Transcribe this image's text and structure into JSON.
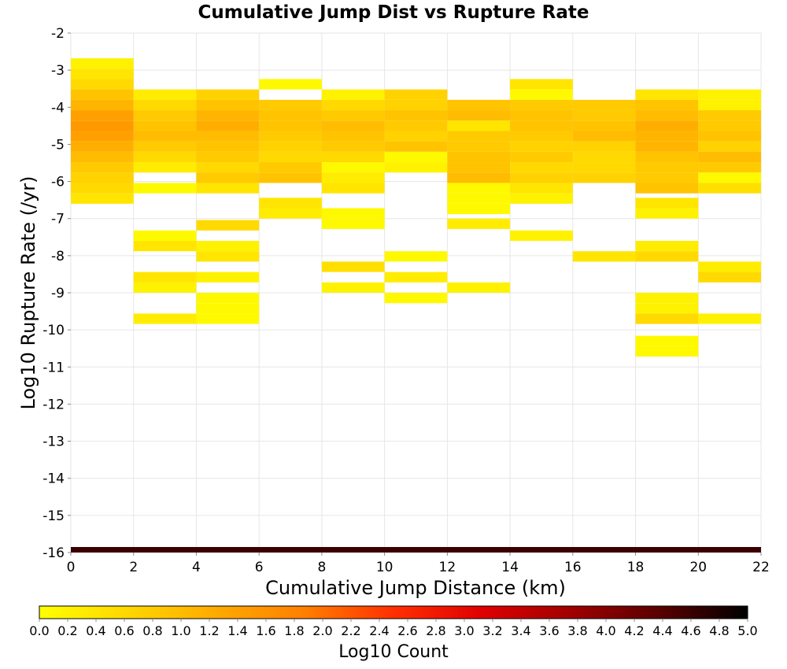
{
  "chart_data": {
    "type": "heatmap",
    "title": "Cumulative Jump Dist vs Rupture Rate",
    "xlabel": "Cumulative Jump Distance (km)",
    "ylabel": "Log10 Rupture Rate (/yr)",
    "xlim": [
      0,
      22
    ],
    "ylim": [
      -16,
      -2
    ],
    "x_ticks": [
      "0",
      "2",
      "4",
      "6",
      "8",
      "10",
      "12",
      "14",
      "16",
      "18",
      "20",
      "22"
    ],
    "y_ticks": [
      "-2",
      "-3",
      "-4",
      "-5",
      "-6",
      "-7",
      "-8",
      "-9",
      "-10",
      "-11",
      "-12",
      "-13",
      "-14",
      "-15",
      "-16"
    ],
    "x_bin_width": 2,
    "y_bin_height": 0.28,
    "colorbar": {
      "label": "Log10 Count",
      "range": [
        0,
        5
      ],
      "ticks": [
        "0.0",
        "0.2",
        "0.4",
        "0.6",
        "0.8",
        "1.0",
        "1.2",
        "1.4",
        "1.6",
        "1.8",
        "2.0",
        "2.2",
        "2.4",
        "2.6",
        "2.8",
        "3.0",
        "3.2",
        "3.4",
        "3.6",
        "3.8",
        "4.0",
        "4.2",
        "4.4",
        "4.6",
        "4.8",
        "5.0"
      ],
      "colors": [
        "#ffff00",
        "#ffd700",
        "#ffaa00",
        "#ff7f00",
        "#ff3000",
        "#e00000",
        "#a00000",
        "#5a0000",
        "#000000"
      ]
    },
    "cells": [
      {
        "x": 0,
        "y_values": [
          -2.82,
          -3.1,
          -3.38,
          -3.66,
          -3.94,
          -4.22,
          -4.5,
          -4.78,
          -5.06,
          -5.34,
          -5.62,
          -5.9,
          -6.18,
          -6.46
        ],
        "counts": [
          0.2,
          0.4,
          0.6,
          0.9,
          1.1,
          1.4,
          1.5,
          1.4,
          1.2,
          1.0,
          0.8,
          0.7,
          0.6,
          0.4
        ]
      },
      {
        "x": 2,
        "y_values": [
          -3.66,
          -3.94,
          -4.22,
          -4.5,
          -4.78,
          -5.06,
          -5.34,
          -5.62,
          -6.18,
          -7.46,
          -7.74,
          -8.58,
          -8.86,
          -9.7
        ],
        "counts": [
          0.3,
          0.6,
          0.8,
          0.9,
          1.0,
          0.8,
          0.6,
          0.3,
          0.1,
          0.1,
          0.4,
          0.4,
          0.2,
          0.3
        ]
      },
      {
        "x": 4,
        "y_values": [
          -3.66,
          -3.94,
          -4.22,
          -4.5,
          -4.78,
          -5.06,
          -5.34,
          -5.62,
          -5.9,
          -6.18,
          -7.18,
          -7.74,
          -8.02,
          -8.58,
          -9.14,
          -9.42,
          -9.7
        ],
        "counts": [
          0.7,
          0.9,
          1.1,
          1.2,
          1.0,
          0.9,
          0.8,
          0.6,
          0.8,
          0.4,
          0.6,
          0.2,
          0.4,
          0.2,
          0.1,
          0.1,
          0.1
        ]
      },
      {
        "x": 6,
        "y_values": [
          -3.38,
          -3.94,
          -4.22,
          -4.5,
          -4.78,
          -5.06,
          -5.34,
          -5.62,
          -5.9,
          -6.58,
          -6.86
        ],
        "counts": [
          0.1,
          0.8,
          0.9,
          0.9,
          0.8,
          0.7,
          0.6,
          0.8,
          0.9,
          0.4,
          0.3
        ]
      },
      {
        "x": 8,
        "y_values": [
          -3.66,
          -3.94,
          -4.22,
          -4.5,
          -4.78,
          -5.06,
          -5.34,
          -5.62,
          -5.9,
          -6.18,
          -6.86,
          -7.14,
          -8.3,
          -8.86
        ],
        "counts": [
          0.2,
          0.6,
          0.8,
          1.0,
          0.9,
          0.8,
          0.6,
          0.1,
          0.3,
          0.4,
          0.1,
          0.1,
          0.5,
          0.2
        ]
      },
      {
        "x": 10,
        "y_values": [
          -3.66,
          -3.94,
          -4.22,
          -4.5,
          -4.78,
          -5.06,
          -5.34,
          -5.62,
          -8.02,
          -8.58,
          -9.14
        ],
        "counts": [
          0.7,
          0.7,
          0.9,
          0.8,
          0.7,
          0.9,
          0.1,
          0.2,
          0.1,
          0.3,
          0.1
        ]
      },
      {
        "x": 12,
        "y_values": [
          -3.94,
          -4.22,
          -4.5,
          -4.78,
          -5.06,
          -5.34,
          -5.62,
          -5.9,
          -6.18,
          -6.46,
          -6.74,
          -7.14,
          -8.86
        ],
        "counts": [
          0.9,
          1.0,
          0.4,
          0.8,
          0.8,
          0.9,
          0.9,
          1.0,
          0.1,
          0.1,
          0.1,
          0.3,
          0.2
        ]
      },
      {
        "x": 14,
        "y_values": [
          -3.38,
          -3.66,
          -3.94,
          -4.22,
          -4.5,
          -4.78,
          -5.06,
          -5.34,
          -5.62,
          -5.9,
          -6.18,
          -6.46,
          -7.46
        ],
        "counts": [
          0.4,
          0.1,
          0.8,
          0.9,
          0.9,
          0.8,
          0.7,
          0.8,
          0.6,
          0.7,
          0.4,
          0.2,
          0.2
        ]
      },
      {
        "x": 16,
        "y_values": [
          -3.94,
          -4.22,
          -4.5,
          -4.78,
          -5.06,
          -5.34,
          -5.62,
          -5.9,
          -8.02
        ],
        "counts": [
          0.8,
          0.8,
          0.9,
          1.0,
          0.7,
          0.6,
          0.6,
          0.7,
          0.4
        ]
      },
      {
        "x": 18,
        "y_values": [
          -3.66,
          -3.94,
          -4.22,
          -4.5,
          -4.78,
          -5.06,
          -5.34,
          -5.62,
          -5.9,
          -6.18,
          -6.58,
          -6.86,
          -7.74,
          -8.02,
          -9.14,
          -9.42,
          -9.7,
          -10.3,
          -10.58
        ],
        "counts": [
          0.4,
          0.9,
          1.0,
          1.2,
          1.1,
          1.1,
          0.9,
          0.8,
          0.8,
          0.9,
          0.4,
          0.2,
          0.3,
          0.6,
          0.2,
          0.2,
          0.6,
          0.1,
          0.1
        ]
      },
      {
        "x": 20,
        "y_values": [
          -3.66,
          -3.94,
          -4.22,
          -4.5,
          -4.78,
          -5.06,
          -5.34,
          -5.62,
          -5.9,
          -6.18,
          -8.3,
          -8.58,
          -9.7
        ],
        "counts": [
          0.2,
          0.2,
          0.8,
          0.8,
          0.9,
          0.7,
          1.0,
          0.8,
          0.1,
          0.5,
          0.3,
          0.6,
          0.2
        ]
      }
    ],
    "bottom_band": {
      "y": -16,
      "count": 4.6
    }
  }
}
